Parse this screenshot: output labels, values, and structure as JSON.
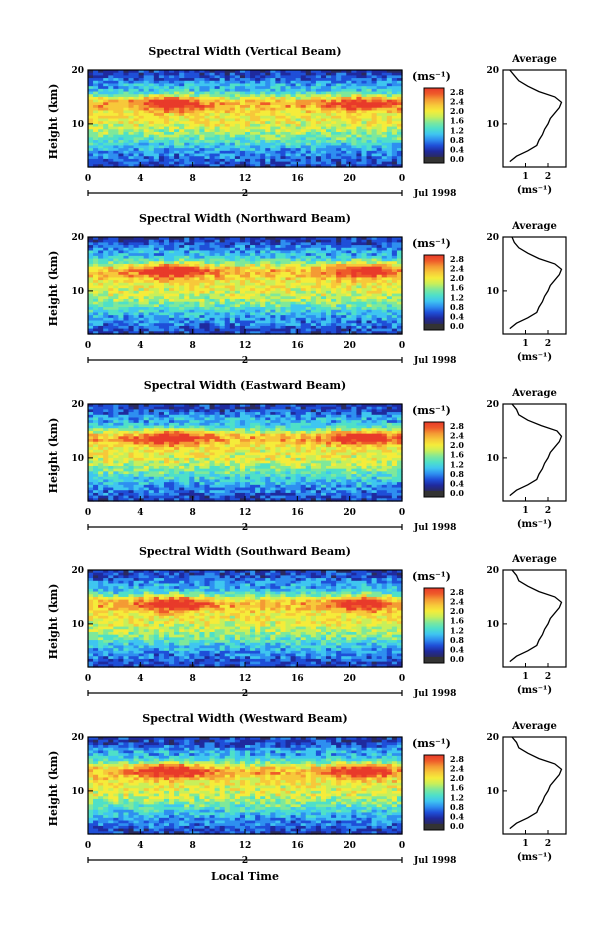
{
  "colors": {
    "colormap": [
      "#2a2a5e",
      "#1f2a9e",
      "#1f4fd8",
      "#2e8ff0",
      "#3fc6f0",
      "#4fe0c8",
      "#7fe89a",
      "#c8ef5a",
      "#f5ec3a",
      "#f7c83a",
      "#f49a34",
      "#ee5a2a",
      "#e83a2a"
    ]
  },
  "x_axis": {
    "ticks": [
      "0",
      "4",
      "8",
      "12",
      "16",
      "20",
      "0"
    ],
    "day_label": "2",
    "date_label": "Jul 1998",
    "title": "Local Time"
  },
  "y_axis": {
    "label": "Height (km)",
    "ticks": [
      "20",
      "10"
    ]
  },
  "colorbar": {
    "unit": "(ms⁻¹)",
    "ticks": [
      "2.8",
      "2.4",
      "2.0",
      "1.6",
      "1.2",
      "0.8",
      "0.4",
      "0.0"
    ]
  },
  "average_panel": {
    "title": "Average",
    "y_ticks": [
      "20",
      "10"
    ],
    "x_ticks": [
      "1",
      "2"
    ],
    "unit": "(ms⁻¹)"
  },
  "chart_data": [
    {
      "type": "heatmap",
      "title": "Spectral Width (Vertical Beam)",
      "x_range": [
        0,
        24
      ],
      "y_range": [
        2,
        20
      ],
      "z_range": [
        0,
        3.0
      ]
    },
    {
      "type": "heatmap",
      "title": "Spectral Width (Northward Beam)",
      "x_range": [
        0,
        24
      ],
      "y_range": [
        2,
        20
      ],
      "z_range": [
        0,
        3.0
      ]
    },
    {
      "type": "heatmap",
      "title": "Spectral Width (Eastward Beam)",
      "x_range": [
        0,
        24
      ],
      "y_range": [
        2,
        20
      ],
      "z_range": [
        0,
        3.0
      ]
    },
    {
      "type": "heatmap",
      "title": "Spectral Width (Southward Beam)",
      "x_range": [
        0,
        24
      ],
      "y_range": [
        2,
        20
      ],
      "z_range": [
        0,
        3.0
      ]
    },
    {
      "type": "heatmap",
      "title": "Spectral Width (Westward Beam)",
      "x_range": [
        0,
        24
      ],
      "y_range": [
        2,
        20
      ],
      "z_range": [
        0,
        3.0
      ]
    }
  ],
  "average_profiles": [
    {
      "height": [
        3,
        4,
        5,
        6,
        7,
        8,
        9,
        10,
        11,
        12,
        13,
        14,
        15,
        16,
        17,
        18,
        19,
        20
      ],
      "width": [
        0.3,
        0.6,
        1.1,
        1.5,
        1.6,
        1.75,
        1.85,
        2.0,
        2.1,
        2.3,
        2.5,
        2.6,
        2.3,
        1.6,
        1.1,
        0.7,
        0.5,
        0.3
      ]
    },
    {
      "height": [
        3,
        4,
        5,
        6,
        7,
        8,
        9,
        10,
        11,
        12,
        13,
        14,
        15,
        16,
        17,
        18,
        19,
        20
      ],
      "width": [
        0.3,
        0.6,
        1.1,
        1.5,
        1.6,
        1.75,
        1.85,
        2.0,
        2.1,
        2.3,
        2.5,
        2.6,
        2.3,
        1.6,
        1.1,
        0.7,
        0.5,
        0.4
      ]
    },
    {
      "height": [
        3,
        4,
        5,
        6,
        7,
        8,
        9,
        10,
        11,
        12,
        13,
        14,
        15,
        16,
        17,
        18,
        19,
        20
      ],
      "width": [
        0.3,
        0.6,
        1.1,
        1.5,
        1.6,
        1.75,
        1.85,
        2.0,
        2.1,
        2.3,
        2.5,
        2.6,
        2.4,
        1.7,
        1.1,
        0.7,
        0.6,
        0.4
      ]
    },
    {
      "height": [
        3,
        4,
        5,
        6,
        7,
        8,
        9,
        10,
        11,
        12,
        13,
        14,
        15,
        16,
        17,
        18,
        19,
        20
      ],
      "width": [
        0.3,
        0.6,
        1.1,
        1.5,
        1.6,
        1.75,
        1.85,
        2.0,
        2.1,
        2.3,
        2.5,
        2.6,
        2.3,
        1.6,
        1.1,
        0.7,
        0.6,
        0.4
      ]
    },
    {
      "height": [
        3,
        4,
        5,
        6,
        7,
        8,
        9,
        10,
        11,
        12,
        13,
        14,
        15,
        16,
        17,
        18,
        19,
        20
      ],
      "width": [
        0.3,
        0.6,
        1.1,
        1.5,
        1.6,
        1.75,
        1.85,
        2.0,
        2.1,
        2.3,
        2.5,
        2.6,
        2.3,
        1.6,
        1.1,
        0.7,
        0.6,
        0.4
      ]
    }
  ]
}
